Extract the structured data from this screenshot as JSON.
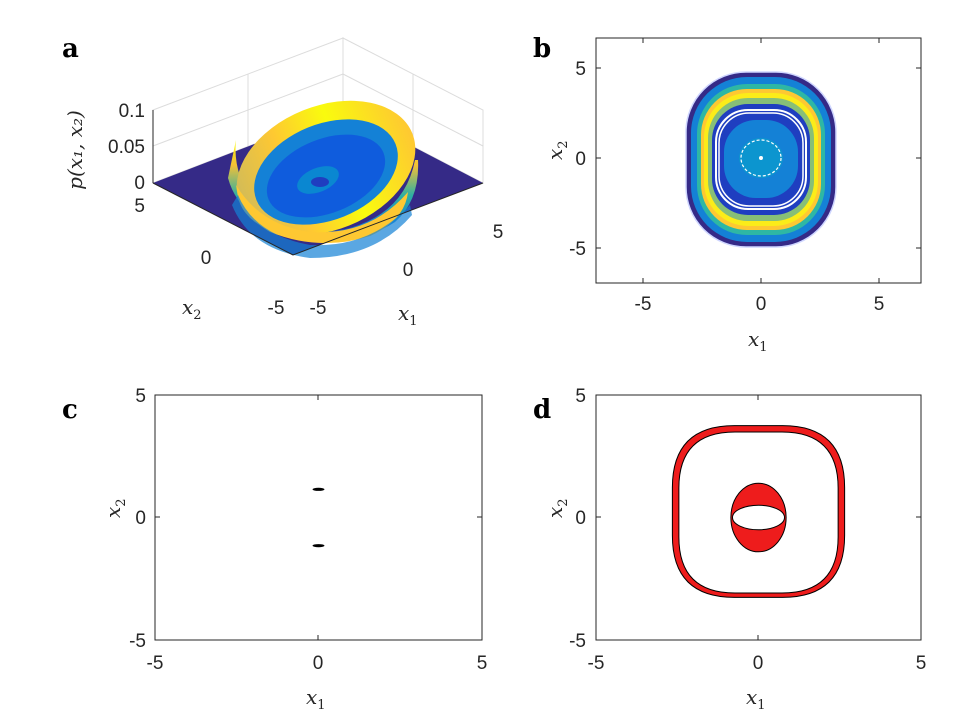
{
  "chart_data": [
    {
      "panel": "a",
      "type": "surface3d",
      "xlabel": "x",
      "xlabel_sub": "1",
      "ylabel": "x",
      "ylabel_sub": "2",
      "zlabel": "p(x₁, x₂)",
      "x_ticks": [
        "-5",
        "0",
        "5"
      ],
      "y_ticks": [
        "-5",
        "0",
        "5"
      ],
      "z_ticks": [
        "0",
        "0.05",
        "0.1"
      ],
      "xlim": [
        -5,
        5
      ],
      "ylim": [
        -5,
        5
      ],
      "zlim": [
        0,
        0.1
      ],
      "colormap": [
        "#352a87",
        "#0f5cdd",
        "#1481d6",
        "#06a4ca",
        "#2eb7a4",
        "#87bf77",
        "#d1bb59",
        "#fec832",
        "#f9fb0e"
      ],
      "grid": true
    },
    {
      "panel": "b",
      "type": "heatmap",
      "xlabel": "x",
      "xlabel_sub": "1",
      "ylabel": "x",
      "ylabel_sub": "2",
      "x_ticks": [
        "-5",
        "0",
        "5"
      ],
      "y_ticks": [
        "-5",
        "0",
        "5"
      ],
      "xlim": [
        -7,
        7
      ],
      "ylim": [
        -7,
        7
      ]
    },
    {
      "panel": "c",
      "type": "scatter",
      "xlabel": "x",
      "xlabel_sub": "1",
      "ylabel": "x",
      "ylabel_sub": "2",
      "x_ticks": [
        "-5",
        "0",
        "5"
      ],
      "y_ticks": [
        "-5",
        "0",
        "5"
      ],
      "xlim": [
        -5,
        5
      ],
      "ylim": [
        -5,
        5
      ],
      "points": [
        {
          "x": 0,
          "y": 1.15
        },
        {
          "x": 0,
          "y": -1.15
        }
      ]
    },
    {
      "panel": "d",
      "type": "area",
      "xlabel": "x",
      "xlabel_sub": "1",
      "ylabel": "x",
      "ylabel_sub": "2",
      "x_ticks": [
        "-5",
        "0",
        "5"
      ],
      "y_ticks": [
        "-5",
        "0",
        "5"
      ],
      "xlim": [
        -5,
        5
      ],
      "ylim": [
        -5,
        5
      ],
      "fill_color": "#ee1c1c",
      "regions": [
        {
          "shape": "outer-ring",
          "outer_x": 2.65,
          "outer_y": 3.75,
          "inner_x": 2.45,
          "inner_y": 3.45
        },
        {
          "shape": "inner-ring",
          "outer_x": 0.85,
          "outer_y": 1.4,
          "inner_x": 0.8,
          "inner_y": 0.5
        }
      ]
    }
  ],
  "panel_letters": {
    "a": "a",
    "b": "b",
    "c": "c",
    "d": "d"
  }
}
